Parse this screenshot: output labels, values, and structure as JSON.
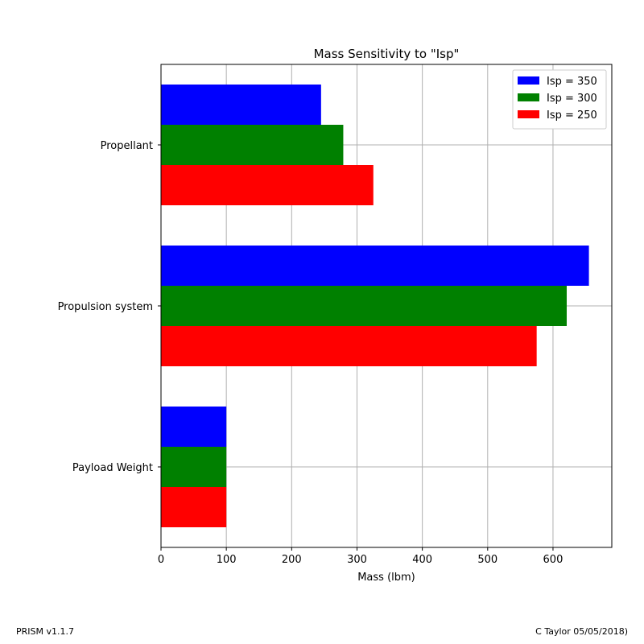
{
  "chart_data": {
    "type": "bar",
    "orientation": "horizontal",
    "title": "Mass Sensitivity to \"Isp\"",
    "xlabel": "Mass (lbm)",
    "ylabel": "",
    "categories": [
      "Propellant",
      "Propulsion system",
      "Payload Weight"
    ],
    "series": [
      {
        "name": "Isp = 350",
        "color": "#0000ff",
        "values": [
          245,
          655,
          100
        ]
      },
      {
        "name": "Isp = 300",
        "color": "#008000",
        "values": [
          279,
          621,
          100
        ]
      },
      {
        "name": "Isp = 250",
        "color": "#ff0000",
        "values": [
          325,
          575,
          100
        ]
      }
    ],
    "xlim": [
      0,
      690
    ],
    "xticks": [
      0,
      100,
      200,
      300,
      400,
      500,
      600
    ],
    "grid": true,
    "legend_position": "top-right"
  },
  "footer": {
    "left": "PRISM v1.1.7",
    "right": "C Taylor 05/05/2018)"
  }
}
